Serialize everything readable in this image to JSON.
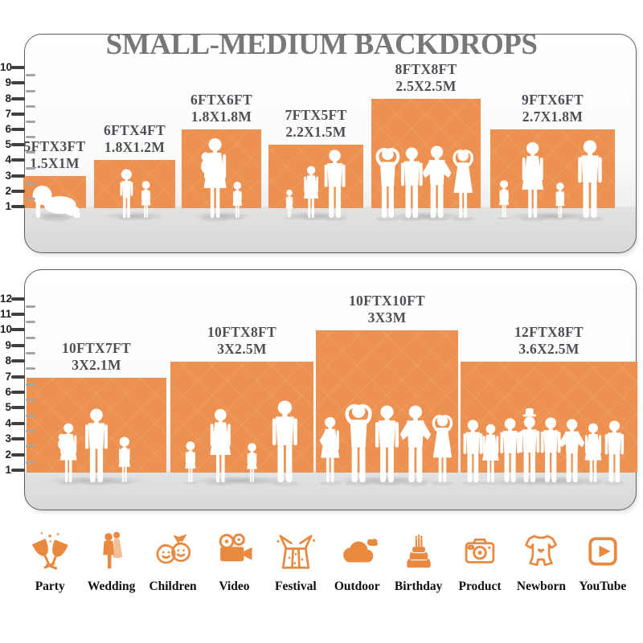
{
  "title": "SMALL-MEDIUM BACKDROPS",
  "colors": {
    "backdrop_orange": "#ED9150",
    "icon_orange": "#E8893F",
    "title_gray": "#78787A",
    "label_gray": "#4D4F54",
    "floor_gray": "#E2E2E3"
  },
  "top_panel": {
    "ruler": [
      "10",
      "9",
      "8",
      "7",
      "6",
      "5",
      "4",
      "3",
      "2",
      "1"
    ],
    "backdrops": [
      {
        "size_ft": "5FTX3FT",
        "size_m": "1.5X1M"
      },
      {
        "size_ft": "6FTX4FT",
        "size_m": "1.8X1.2M"
      },
      {
        "size_ft": "6FTX6FT",
        "size_m": "1.8X1.8M"
      },
      {
        "size_ft": "7FTX5FT",
        "size_m": "2.2X1.5M"
      },
      {
        "size_ft": "8FTX8FT",
        "size_m": "2.5X2.5M"
      },
      {
        "size_ft": "9FTX6FT",
        "size_m": "2.7X1.8M"
      }
    ]
  },
  "bottom_panel": {
    "ruler": [
      "12",
      "11",
      "10",
      "9",
      "8",
      "7",
      "6",
      "5",
      "4",
      "3",
      "2",
      "1"
    ],
    "backdrops": [
      {
        "size_ft": "10FTX7FT",
        "size_m": "3X2.1M"
      },
      {
        "size_ft": "10FTX8FT",
        "size_m": "3X2.5M"
      },
      {
        "size_ft": "10FTX10FT",
        "size_m": "3X3M"
      },
      {
        "size_ft": "12FTX8FT",
        "size_m": "3.6X2.5M"
      }
    ]
  },
  "categories": [
    {
      "label": "Party",
      "icon": "party-glasses-icon"
    },
    {
      "label": "Wedding",
      "icon": "wedding-couple-icon"
    },
    {
      "label": "Children",
      "icon": "children-faces-icon"
    },
    {
      "label": "Video",
      "icon": "video-camera-icon"
    },
    {
      "label": "Festival",
      "icon": "gift-box-icon"
    },
    {
      "label": "Outdoor",
      "icon": "cloud-icon"
    },
    {
      "label": "Birthday",
      "icon": "birthday-cake-icon"
    },
    {
      "label": "Product",
      "icon": "photo-camera-icon"
    },
    {
      "label": "Newborn",
      "icon": "baby-onesie-icon"
    },
    {
      "label": "YouTube",
      "icon": "play-button-icon"
    }
  ]
}
